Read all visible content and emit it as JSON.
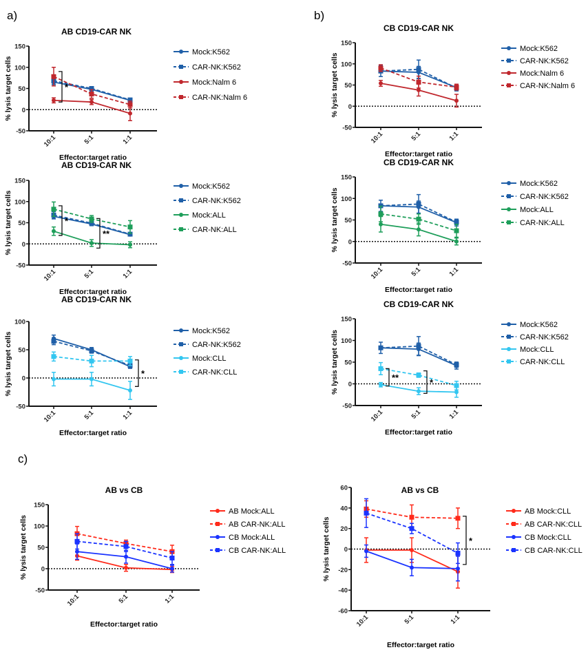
{
  "panel_labels": [
    "a)",
    "b)",
    "c)"
  ],
  "chart_data": [
    {
      "type": "line",
      "title": "AB CD19-CAR NK",
      "xlabel": "Effector:target ratio",
      "ylabel": "% lysis target cells",
      "categories": [
        "10:1",
        "5:1",
        "1:1"
      ],
      "ylim": [
        -50,
        150
      ],
      "yticks": [
        -50,
        0,
        50,
        100,
        150
      ],
      "reference_line": 0,
      "grid": false,
      "legend": "right",
      "series": [
        {
          "name": "Mock:K562",
          "color": "#1f5fa8",
          "marker": "circle",
          "line_style": "solid",
          "values": [
            65,
            48,
            22
          ],
          "errors": [
            6,
            4,
            3
          ]
        },
        {
          "name": "CAR-NK:K562",
          "color": "#1f5fa8",
          "marker": "square",
          "line_style": "dashed",
          "values": [
            68,
            50,
            23
          ],
          "errors": [
            8,
            4,
            4
          ]
        },
        {
          "name": "Mock:Nalm 6",
          "color": "#c0272d",
          "marker": "circle",
          "line_style": "solid",
          "values": [
            22,
            18,
            -9
          ],
          "errors": [
            6,
            6,
            17
          ]
        },
        {
          "name": "CAR-NK:Nalm 6",
          "color": "#c0272d",
          "marker": "square",
          "line_style": "dashed",
          "values": [
            78,
            37,
            12
          ],
          "errors": [
            22,
            10,
            8
          ]
        }
      ],
      "annotations": [
        {
          "text": "*",
          "category": "10:1",
          "range": [
            18,
            90
          ]
        }
      ]
    },
    {
      "type": "line",
      "title": "AB CD19-CAR NK",
      "xlabel": "Effector:target ratio",
      "ylabel": "% lysis target cells",
      "categories": [
        "10:1",
        "5:1",
        "1:1"
      ],
      "ylim": [
        -50,
        150
      ],
      "yticks": [
        -50,
        0,
        50,
        100,
        150
      ],
      "reference_line": 0,
      "grid": false,
      "legend": "right",
      "series": [
        {
          "name": "Mock:K562",
          "color": "#1f5fa8",
          "marker": "circle",
          "line_style": "solid",
          "values": [
            65,
            47,
            22
          ],
          "errors": [
            6,
            4,
            3
          ]
        },
        {
          "name": "CAR-NK:K562",
          "color": "#1f5fa8",
          "marker": "square",
          "line_style": "dashed",
          "values": [
            68,
            49,
            23
          ],
          "errors": [
            8,
            4,
            4
          ]
        },
        {
          "name": "Mock:ALL",
          "color": "#1e9e5a",
          "marker": "circle",
          "line_style": "solid",
          "values": [
            30,
            2,
            -2
          ],
          "errors": [
            10,
            8,
            7
          ]
        },
        {
          "name": "CAR-NK:ALL",
          "color": "#1e9e5a",
          "marker": "square",
          "line_style": "dashed",
          "values": [
            82,
            59,
            40
          ],
          "errors": [
            17,
            8,
            15
          ]
        }
      ],
      "annotations": [
        {
          "text": "*",
          "category": "10:1",
          "range": [
            20,
            90
          ]
        },
        {
          "text": "**",
          "category": "5:1",
          "range": [
            -10,
            60
          ]
        }
      ]
    },
    {
      "type": "line",
      "title": "AB CD19-CAR NK",
      "xlabel": "Effector:target ratio",
      "ylabel": "% lysis target cells",
      "categories": [
        "10:1",
        "5:1",
        "1:1"
      ],
      "ylim": [
        -50,
        100
      ],
      "yticks": [
        -50,
        0,
        50,
        100
      ],
      "reference_line": 0,
      "grid": false,
      "legend": "right",
      "series": [
        {
          "name": "Mock:K562",
          "color": "#1f5fa8",
          "marker": "circle",
          "line_style": "solid",
          "values": [
            70,
            50,
            20
          ],
          "errors": [
            6,
            4,
            3
          ]
        },
        {
          "name": "CAR-NK:K562",
          "color": "#1f5fa8",
          "marker": "square",
          "line_style": "dashed",
          "values": [
            65,
            48,
            22
          ],
          "errors": [
            6,
            4,
            4
          ]
        },
        {
          "name": "Mock:CLL",
          "color": "#33c6f0",
          "marker": "circle",
          "line_style": "solid",
          "values": [
            -2,
            -2,
            -22
          ],
          "errors": [
            12,
            12,
            16
          ]
        },
        {
          "name": "CAR-NK:CLL",
          "color": "#33c6f0",
          "marker": "square",
          "line_style": "dashed",
          "values": [
            38,
            30,
            30
          ],
          "errors": [
            8,
            10,
            8
          ]
        }
      ],
      "annotations": [
        {
          "text": "*",
          "category": "1:1",
          "range": [
            -15,
            32
          ]
        }
      ]
    },
    {
      "type": "line",
      "title": "CB CD19-CAR NK",
      "xlabel": "Effector:target ratio",
      "ylabel": "% lysis target cells",
      "categories": [
        "10:1",
        "5:1",
        "1:1"
      ],
      "ylim": [
        -50,
        150
      ],
      "yticks": [
        -50,
        0,
        50,
        100,
        150
      ],
      "reference_line": 0,
      "grid": false,
      "legend": "right",
      "series": [
        {
          "name": "Mock:K562",
          "color": "#1f5fa8",
          "marker": "circle",
          "line_style": "solid",
          "values": [
            83,
            80,
            44
          ],
          "errors": [
            13,
            14,
            8
          ]
        },
        {
          "name": "CAR-NK:K562",
          "color": "#1f5fa8",
          "marker": "square",
          "line_style": "dashed",
          "values": [
            83,
            87,
            43
          ],
          "errors": [
            4,
            22,
            6
          ]
        },
        {
          "name": "Mock:Nalm 6",
          "color": "#c0272d",
          "marker": "circle",
          "line_style": "solid",
          "values": [
            54,
            38,
            13
          ],
          "errors": [
            7,
            14,
            15
          ]
        },
        {
          "name": "CAR-NK:Nalm 6",
          "color": "#c0272d",
          "marker": "square",
          "line_style": "dashed",
          "values": [
            90,
            57,
            45
          ],
          "errors": [
            8,
            14,
            7
          ]
        }
      ],
      "annotations": []
    },
    {
      "type": "line",
      "title": "CB CD19-CAR NK",
      "xlabel": "Effector:target ratio",
      "ylabel": "% lysis target cells",
      "categories": [
        "10:1",
        "5:1",
        "1:1"
      ],
      "ylim": [
        -50,
        150
      ],
      "yticks": [
        -50,
        0,
        50,
        100,
        150
      ],
      "reference_line": 0,
      "grid": false,
      "legend": "right",
      "series": [
        {
          "name": "Mock:K562",
          "color": "#1f5fa8",
          "marker": "circle",
          "line_style": "solid",
          "values": [
            83,
            80,
            44
          ],
          "errors": [
            13,
            14,
            8
          ]
        },
        {
          "name": "CAR-NK:K562",
          "color": "#1f5fa8",
          "marker": "square",
          "line_style": "dashed",
          "values": [
            83,
            87,
            45
          ],
          "errors": [
            4,
            22,
            6
          ]
        },
        {
          "name": "Mock:ALL",
          "color": "#1e9e5a",
          "marker": "circle",
          "line_style": "solid",
          "values": [
            40,
            28,
            0
          ],
          "errors": [
            18,
            15,
            8
          ]
        },
        {
          "name": "CAR-NK:ALL",
          "color": "#1e9e5a",
          "marker": "square",
          "line_style": "dashed",
          "values": [
            64,
            52,
            25
          ],
          "errors": [
            18,
            12,
            15
          ]
        }
      ],
      "annotations": []
    },
    {
      "type": "line",
      "title": "CB CD19-CAR NK",
      "xlabel": "Effector:target ratio",
      "ylabel": "% lysis target cells",
      "categories": [
        "10:1",
        "5:1",
        "1:1"
      ],
      "ylim": [
        -50,
        150
      ],
      "yticks": [
        -50,
        0,
        50,
        100,
        150
      ],
      "reference_line": 0,
      "grid": false,
      "legend": "right",
      "series": [
        {
          "name": "Mock:K562",
          "color": "#1f5fa8",
          "marker": "circle",
          "line_style": "solid",
          "values": [
            83,
            80,
            42
          ],
          "errors": [
            13,
            14,
            8
          ]
        },
        {
          "name": "CAR-NK:K562",
          "color": "#1f5fa8",
          "marker": "square",
          "line_style": "dashed",
          "values": [
            83,
            87,
            44
          ],
          "errors": [
            4,
            22,
            6
          ]
        },
        {
          "name": "Mock:CLL",
          "color": "#33c6f0",
          "marker": "circle",
          "line_style": "solid",
          "values": [
            -2,
            -17,
            -19
          ],
          "errors": [
            5,
            8,
            12
          ]
        },
        {
          "name": "CAR-NK:CLL",
          "color": "#33c6f0",
          "marker": "square",
          "line_style": "dashed",
          "values": [
            35,
            20,
            -4
          ],
          "errors": [
            14,
            5,
            10
          ]
        }
      ],
      "annotations": [
        {
          "text": "**",
          "category": "10:1",
          "range": [
            -5,
            35
          ]
        },
        {
          "text": "*",
          "category": "5:1",
          "range": [
            -22,
            30
          ]
        }
      ]
    },
    {
      "type": "line",
      "title": "AB vs CB",
      "xlabel": "Effector:target ratio",
      "ylabel": "% lysis target cells",
      "categories": [
        "10:1",
        "5:1",
        "1:1"
      ],
      "ylim": [
        -50,
        150
      ],
      "yticks": [
        -50,
        0,
        50,
        100,
        150
      ],
      "reference_line": 0,
      "grid": false,
      "legend": "right",
      "series": [
        {
          "name": "AB Mock:ALL",
          "color": "#ff2a1a",
          "marker": "circle",
          "line_style": "solid",
          "values": [
            30,
            2,
            -2
          ],
          "errors": [
            10,
            8,
            7
          ]
        },
        {
          "name": "AB CAR-NK:ALL",
          "color": "#ff2a1a",
          "marker": "square",
          "line_style": "dashed",
          "values": [
            82,
            59,
            40
          ],
          "errors": [
            17,
            8,
            15
          ]
        },
        {
          "name": "CB Mock:ALL",
          "color": "#1a33ff",
          "marker": "circle",
          "line_style": "solid",
          "values": [
            40,
            28,
            0
          ],
          "errors": [
            18,
            15,
            8
          ]
        },
        {
          "name": "CB CAR-NK:ALL",
          "color": "#1a33ff",
          "marker": "square",
          "line_style": "dashed",
          "values": [
            64,
            52,
            25
          ],
          "errors": [
            18,
            12,
            15
          ]
        }
      ],
      "annotations": []
    },
    {
      "type": "line",
      "title": "AB vs CB",
      "xlabel": "Effector:target ratio",
      "ylabel": "% lysis target cells",
      "categories": [
        "10:1",
        "5:1",
        "1:1"
      ],
      "ylim": [
        -60,
        60
      ],
      "yticks": [
        -60,
        -40,
        -20,
        0,
        20,
        40,
        60
      ],
      "reference_line": 0,
      "grid": false,
      "legend": "right",
      "series": [
        {
          "name": "AB Mock:CLL",
          "color": "#ff2a1a",
          "marker": "circle",
          "line_style": "solid",
          "values": [
            -1,
            -1,
            -22
          ],
          "errors": [
            12,
            12,
            16
          ]
        },
        {
          "name": "AB CAR-NK:CLL",
          "color": "#ff2a1a",
          "marker": "square",
          "line_style": "dashed",
          "values": [
            39,
            31,
            30
          ],
          "errors": [
            8,
            12,
            10
          ]
        },
        {
          "name": "CB Mock:CLL",
          "color": "#1a33ff",
          "marker": "circle",
          "line_style": "solid",
          "values": [
            -2,
            -18,
            -19
          ],
          "errors": [
            6,
            8,
            12
          ]
        },
        {
          "name": "CB CAR-NK:CLL",
          "color": "#1a33ff",
          "marker": "square",
          "line_style": "dashed",
          "values": [
            35,
            20,
            -4
          ],
          "errors": [
            14,
            5,
            10
          ]
        }
      ],
      "annotations": [
        {
          "text": "*",
          "category": "1:1",
          "range": [
            -15,
            32
          ]
        }
      ]
    }
  ]
}
